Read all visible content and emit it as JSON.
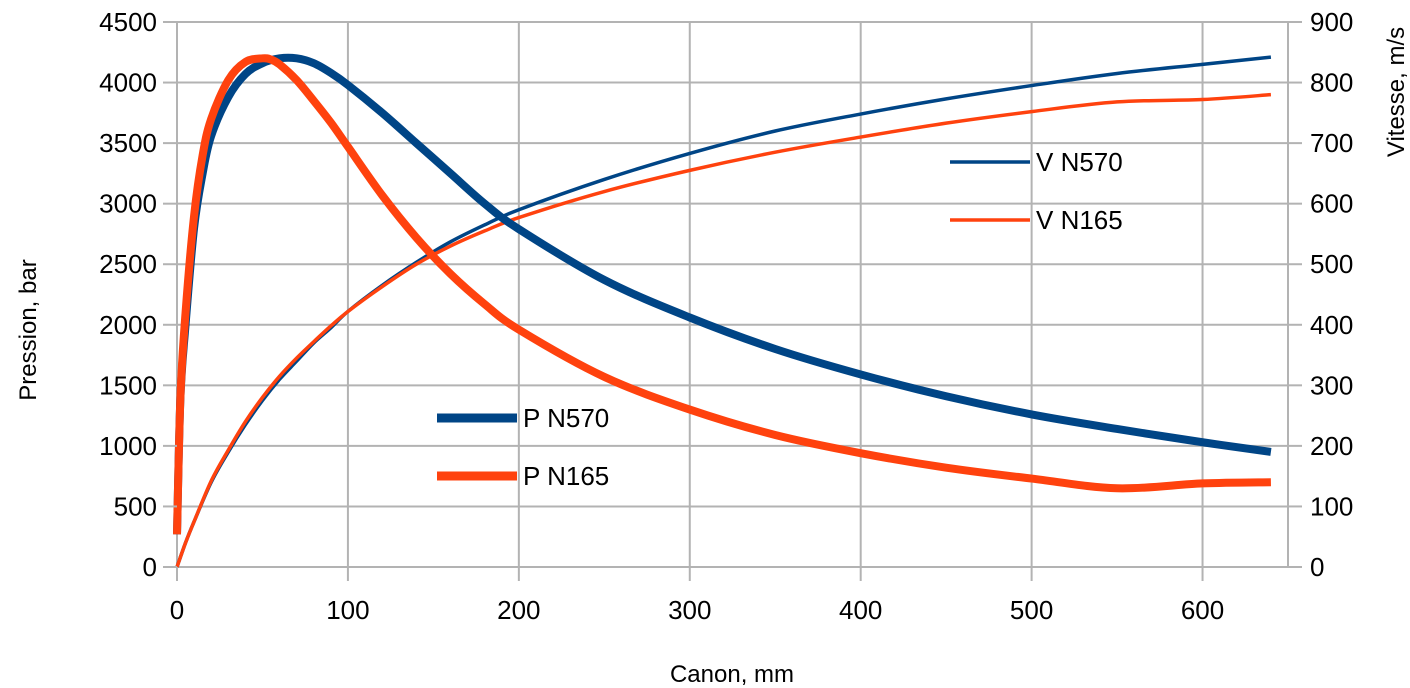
{
  "chart_data": {
    "type": "line",
    "title": "",
    "xlabel": "Canon, mm",
    "ylabel_left": "Pression, bar",
    "ylabel_right": "Vitesse, m/s",
    "xlim": [
      0,
      650
    ],
    "ylim_left": [
      0,
      4500
    ],
    "ylim_right": [
      0,
      900
    ],
    "x_ticks": [
      "0",
      "100",
      "200",
      "300",
      "400",
      "500",
      "600"
    ],
    "y_left_ticks": [
      "0",
      "500",
      "1000",
      "1500",
      "2000",
      "2500",
      "3000",
      "3500",
      "4000",
      "4500"
    ],
    "y_right_ticks": [
      "0",
      "100",
      "200",
      "300",
      "400",
      "500",
      "600",
      "700",
      "800",
      "900"
    ],
    "grid": true,
    "series": [
      {
        "name": "V N570",
        "axis": "right",
        "color": "#004586",
        "line": "thin",
        "x": [
          0,
          5,
          10,
          20,
          30,
          40,
          50,
          60,
          70,
          80,
          90,
          100,
          120,
          140,
          160,
          180,
          200,
          250,
          300,
          350,
          400,
          450,
          500,
          550,
          600,
          640
        ],
        "y": [
          0,
          40,
          75,
          140,
          190,
          235,
          275,
          310,
          340,
          370,
          395,
          422,
          465,
          503,
          537,
          565,
          590,
          640,
          683,
          720,
          748,
          773,
          795,
          815,
          830,
          842
        ]
      },
      {
        "name": "V N165",
        "axis": "right",
        "color": "#ff420e",
        "line": "thin",
        "x": [
          0,
          5,
          10,
          20,
          30,
          40,
          50,
          60,
          70,
          80,
          90,
          100,
          120,
          140,
          160,
          180,
          200,
          250,
          300,
          350,
          400,
          450,
          500,
          550,
          600,
          640
        ],
        "y": [
          0,
          40,
          75,
          142,
          193,
          240,
          280,
          315,
          345,
          372,
          398,
          422,
          463,
          500,
          530,
          555,
          577,
          620,
          655,
          685,
          710,
          733,
          752,
          768,
          772,
          780
        ]
      },
      {
        "name": "P N570",
        "axis": "left",
        "color": "#004586",
        "line": "thick",
        "x": [
          0,
          2,
          5,
          10,
          15,
          20,
          30,
          40,
          50,
          60,
          70,
          80,
          90,
          100,
          120,
          140,
          160,
          180,
          200,
          250,
          300,
          350,
          400,
          450,
          500,
          550,
          600,
          640
        ],
        "y": [
          270,
          1400,
          2000,
          2800,
          3250,
          3560,
          3880,
          4070,
          4160,
          4200,
          4200,
          4160,
          4080,
          3980,
          3750,
          3500,
          3250,
          3000,
          2790,
          2370,
          2060,
          1800,
          1590,
          1410,
          1260,
          1140,
          1030,
          950
        ]
      },
      {
        "name": "P N165",
        "axis": "left",
        "color": "#ff420e",
        "line": "thick",
        "x": [
          0,
          2,
          5,
          10,
          15,
          20,
          30,
          40,
          50,
          55,
          60,
          70,
          80,
          90,
          100,
          120,
          140,
          160,
          180,
          200,
          250,
          300,
          350,
          400,
          450,
          500,
          550,
          600,
          640
        ],
        "y": [
          270,
          1400,
          2100,
          2900,
          3400,
          3700,
          4020,
          4170,
          4200,
          4190,
          4150,
          4020,
          3850,
          3670,
          3470,
          3070,
          2720,
          2420,
          2170,
          1960,
          1570,
          1300,
          1090,
          940,
          820,
          730,
          650,
          690,
          700
        ]
      }
    ],
    "legend": [
      {
        "label": "V N570",
        "color": "#004586",
        "line": "thin",
        "placement": "upper-right"
      },
      {
        "label": "V N165",
        "color": "#ff420e",
        "line": "thin",
        "placement": "upper-right"
      },
      {
        "label": "P N570",
        "color": "#004586",
        "line": "thick",
        "placement": "lower-middle"
      },
      {
        "label": "P N165",
        "color": "#ff420e",
        "line": "thick",
        "placement": "lower-middle"
      }
    ]
  }
}
